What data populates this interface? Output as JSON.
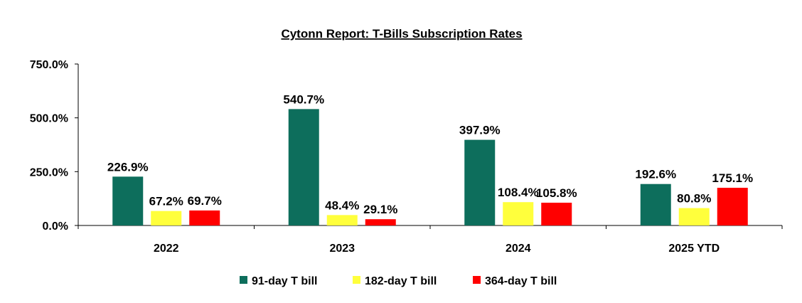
{
  "chart_data": {
    "type": "bar",
    "title": "Cytonn Report: T-Bills Subscription Rates",
    "categories": [
      "2022",
      "2023",
      "2024",
      "2025 YTD"
    ],
    "series": [
      {
        "name": "91-day T bill",
        "color": "#0d6e5c",
        "values": [
          226.9,
          540.7,
          397.9,
          192.6
        ],
        "labels": [
          "226.9%",
          "540.7%",
          "397.9%",
          "192.6%"
        ]
      },
      {
        "name": "182-day T bill",
        "color": "#ffff3c",
        "values": [
          67.2,
          48.4,
          108.4,
          80.8
        ],
        "labels": [
          "67.2%",
          "48.4%",
          "108.4%",
          "80.8%"
        ]
      },
      {
        "name": "364-day T bill",
        "color": "#ff0000",
        "values": [
          69.7,
          29.1,
          105.8,
          175.1
        ],
        "labels": [
          "69.7%",
          "29.1%",
          "105.8%",
          "175.1%"
        ]
      }
    ],
    "yticks": [
      0,
      250,
      500,
      750
    ],
    "ytick_labels": [
      "0.0%",
      "250.0%",
      "500.0%",
      "750.0%"
    ],
    "ylim": [
      0,
      750
    ],
    "xlabel": "",
    "ylabel": "",
    "grid": false,
    "legend_position": "bottom"
  }
}
